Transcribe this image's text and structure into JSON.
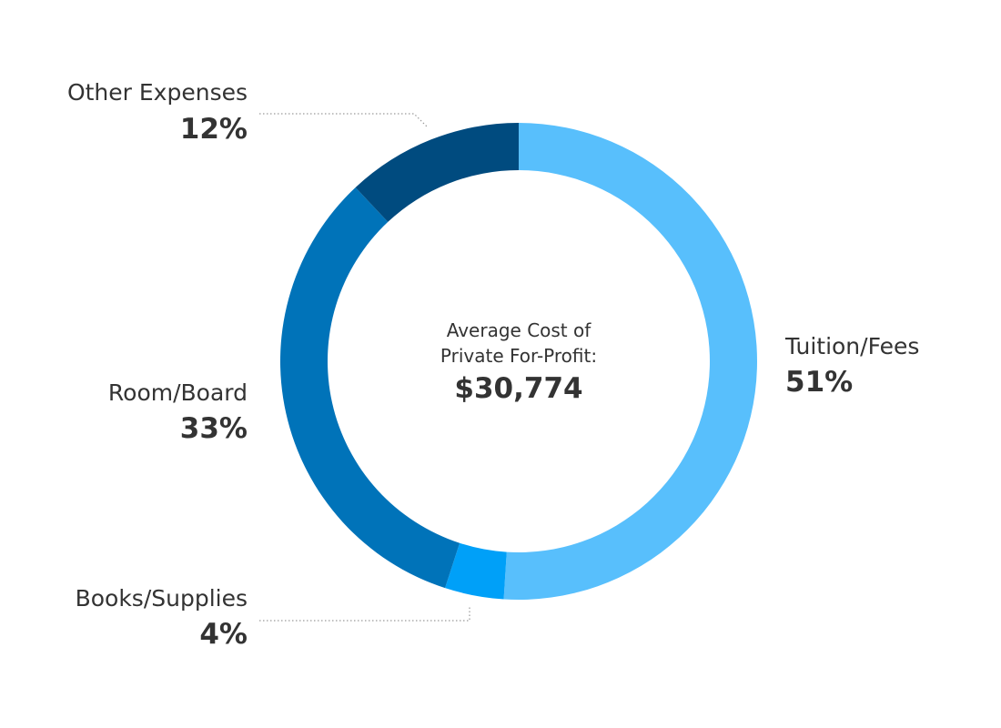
{
  "chart_data": {
    "type": "pie",
    "center_label": {
      "line1": "Average Cost of",
      "line2": "Private For-Profit:",
      "total": "$30,774"
    },
    "slices": [
      {
        "name": "Tuition/Fees",
        "value": 51,
        "value_label": "51%",
        "color": "#58bffc"
      },
      {
        "name": "Books/Supplies",
        "value": 4,
        "value_label": "4%",
        "color": "#00a0f8"
      },
      {
        "name": "Room/Board",
        "value": 33,
        "value_label": "33%",
        "color": "#0073b9"
      },
      {
        "name": "Other Expenses",
        "value": 12,
        "value_label": "12%",
        "color": "#004b7f"
      }
    ]
  }
}
